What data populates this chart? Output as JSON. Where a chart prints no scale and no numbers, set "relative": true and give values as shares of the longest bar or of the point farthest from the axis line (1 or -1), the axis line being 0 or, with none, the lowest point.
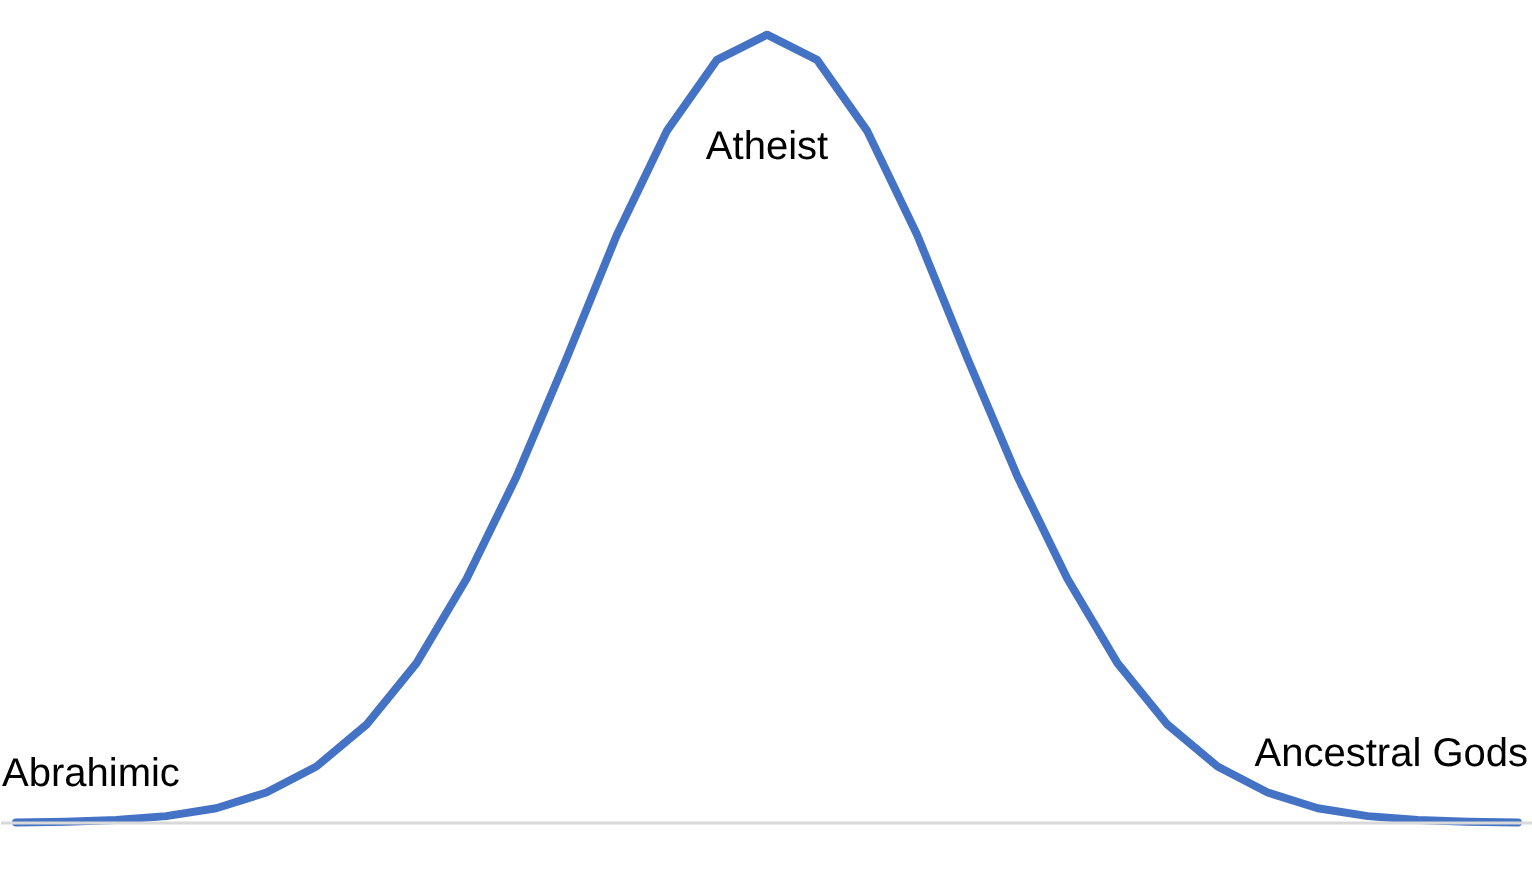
{
  "chart_data": {
    "type": "line",
    "relative": true,
    "color": "#4472c4",
    "grid": false,
    "marker": "none",
    "line_style": "solid",
    "categories": [
      null,
      null,
      null,
      null,
      null,
      null,
      null,
      null,
      null,
      null,
      null,
      null,
      null,
      null,
      null,
      null,
      null,
      null,
      null,
      null,
      null,
      null,
      null,
      null,
      null,
      null,
      null,
      null,
      null,
      null,
      null
    ],
    "values": [
      0.001,
      0.002,
      0.004,
      0.009,
      0.019,
      0.039,
      0.072,
      0.125,
      0.203,
      0.31,
      0.44,
      0.59,
      0.746,
      0.878,
      0.968,
      1,
      0.968,
      0.878,
      0.746,
      0.59,
      0.44,
      0.31,
      0.203,
      0.125,
      0.072,
      0.039,
      0.019,
      0.009,
      0.004,
      0.002,
      0.001
    ],
    "annotations": [
      "Abrahimic",
      "Atheist",
      "Ancestral Gods"
    ]
  }
}
